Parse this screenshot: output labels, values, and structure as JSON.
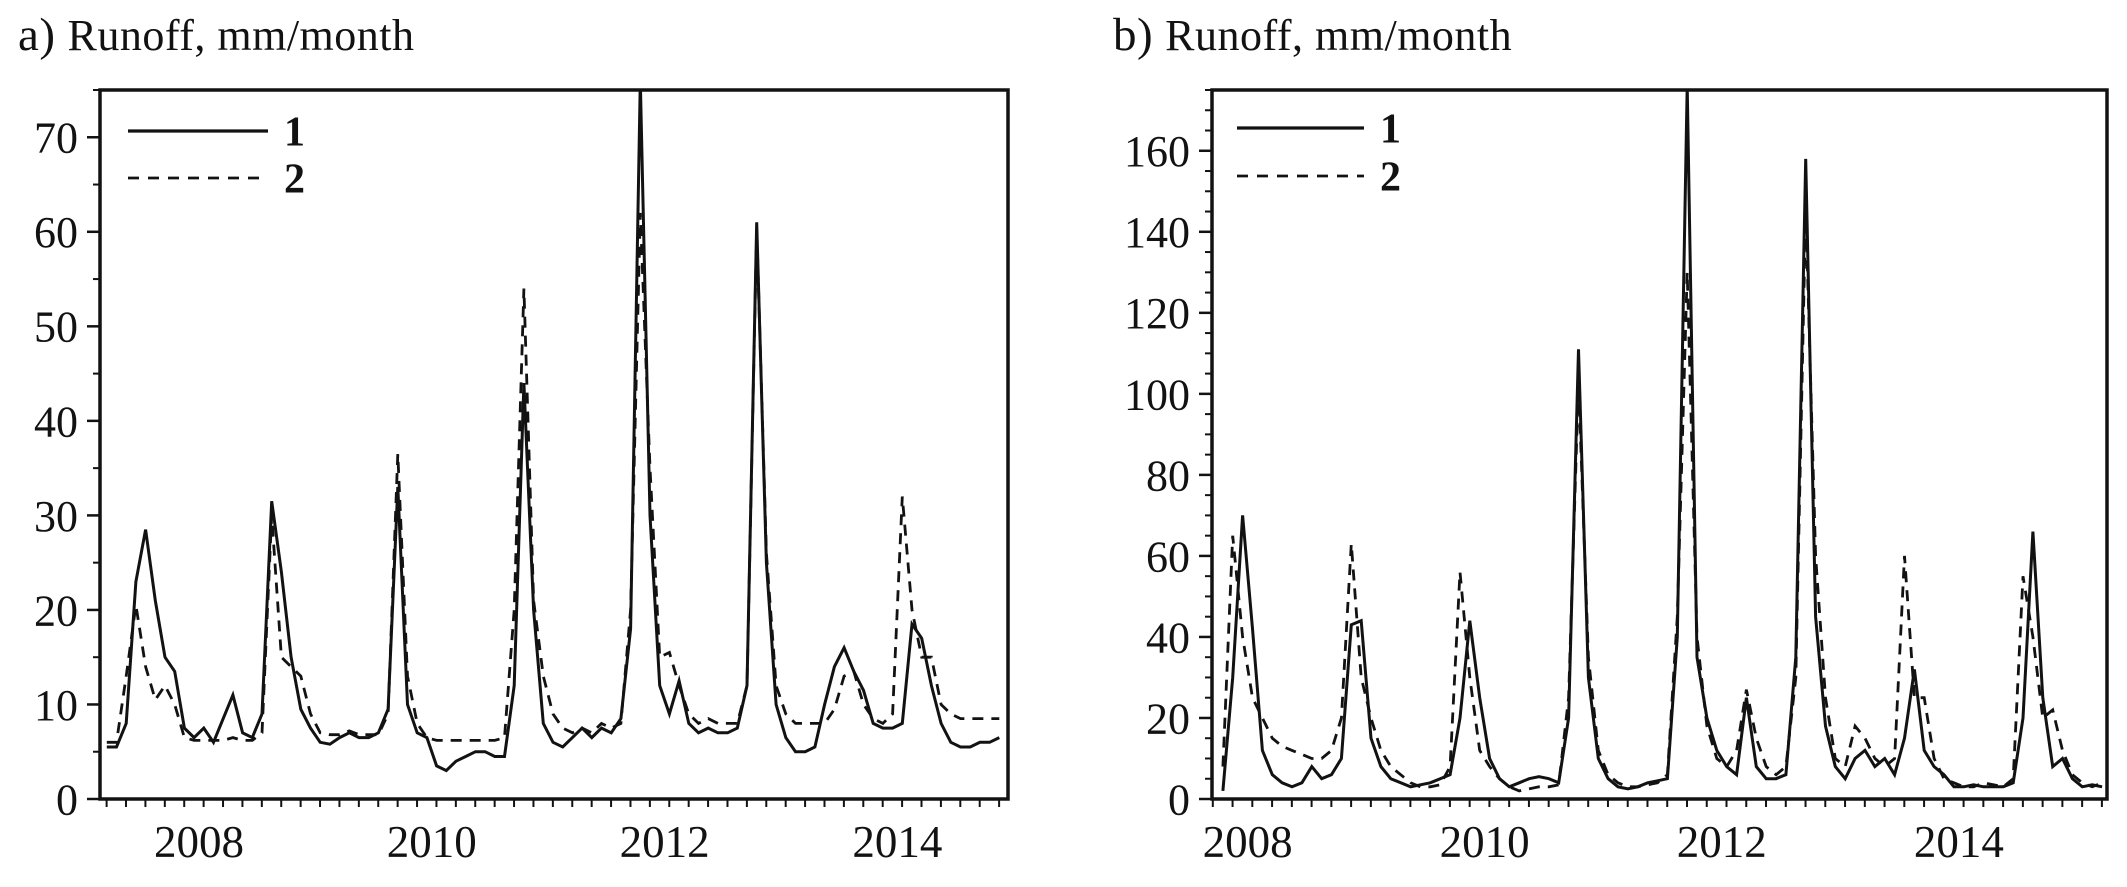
{
  "chart_data": [
    {
      "type": "line",
      "panel_id": "a",
      "panel_label": "a)",
      "title": "Runoff, mm/month",
      "ylabel": "Runoff, mm/month",
      "xlabel": "",
      "grid": false,
      "legend_position": "top-left-inside",
      "legend": [
        {
          "label": "1",
          "style": "solid"
        },
        {
          "label": "2",
          "style": "dashed"
        }
      ],
      "x_start": 2007.2083,
      "x_step_years": 0.0833333,
      "xlim": [
        2007.15,
        2014.95
      ],
      "ylim": [
        0,
        75
      ],
      "x_ticks": [
        2008,
        2010,
        2012,
        2014
      ],
      "y_ticks": [
        0,
        10,
        20,
        30,
        40,
        50,
        60,
        70
      ],
      "y_minor_step": 5,
      "x_minor_step": 0.16667,
      "line_color": "#121212",
      "series": [
        {
          "name": "1",
          "style": "solid",
          "values": [
            5.5,
            5.5,
            8,
            23,
            28.5,
            21,
            15,
            13.5,
            7.5,
            6.5,
            7.5,
            6,
            8.5,
            11,
            7,
            6.5,
            9,
            31.5,
            24,
            15,
            9.5,
            7.5,
            6,
            5.8,
            6.5,
            7,
            6.5,
            6.5,
            7,
            9.5,
            33,
            10,
            7,
            6.5,
            3.5,
            3,
            4,
            4.5,
            5,
            5,
            4.5,
            4.5,
            12,
            44,
            20,
            8,
            6,
            5.5,
            6.5,
            7.5,
            6.5,
            7.5,
            7,
            8.5,
            18,
            76,
            30,
            12,
            9,
            12.5,
            8,
            7,
            7.5,
            7,
            7,
            7.5,
            12,
            61,
            25,
            10,
            6.5,
            5,
            5,
            5.5,
            10,
            14,
            16,
            13.5,
            11.5,
            8,
            7.5,
            7.5,
            8,
            18.5,
            17,
            12,
            8,
            6,
            5.5,
            5.5,
            6,
            6,
            6.5
          ]
        },
        {
          "name": "2",
          "style": "dashed",
          "values": [
            6,
            6,
            13,
            20.5,
            14,
            10.5,
            12,
            10,
            6.5,
            6.2,
            6.2,
            6.2,
            6.2,
            6.5,
            6.2,
            6.2,
            7,
            30,
            15,
            14,
            13,
            9,
            7,
            6.8,
            6.8,
            7.2,
            6.8,
            6.8,
            6.8,
            9,
            36.5,
            13,
            8,
            6.5,
            6.2,
            6.2,
            6.2,
            6.2,
            6.2,
            6.2,
            6.2,
            6.5,
            20,
            54,
            21,
            13,
            9,
            7.5,
            7,
            7.5,
            7,
            8,
            7.5,
            8,
            20,
            62,
            35,
            15,
            15.5,
            12,
            9,
            8,
            8.5,
            8,
            8,
            8,
            12,
            60.5,
            26,
            12,
            9,
            8,
            8,
            8,
            8,
            9.5,
            13,
            13.5,
            10,
            8.5,
            8,
            9,
            32,
            20,
            15,
            15,
            10,
            9,
            8.5,
            8.5,
            8.5,
            8.5,
            8.5
          ]
        }
      ]
    },
    {
      "type": "line",
      "panel_id": "b",
      "panel_label": "b)",
      "title": "Runoff, mm/month",
      "ylabel": "Runoff, mm/month",
      "xlabel": "",
      "grid": false,
      "legend_position": "top-left-inside",
      "legend": [
        {
          "label": "1",
          "style": "solid"
        },
        {
          "label": "2",
          "style": "dashed"
        }
      ],
      "x_start": 2007.7917,
      "x_step_years": 0.0833333,
      "xlim": [
        2007.7,
        2015.25
      ],
      "ylim": [
        0,
        175
      ],
      "x_ticks": [
        2008,
        2010,
        2012,
        2014
      ],
      "y_ticks": [
        0,
        20,
        40,
        60,
        80,
        100,
        120,
        140,
        160
      ],
      "y_minor_step": 5,
      "x_minor_step": 0.16667,
      "line_color": "#121212",
      "series": [
        {
          "name": "1",
          "style": "solid",
          "values": [
            2,
            30,
            70,
            42,
            12,
            6,
            4,
            3,
            4,
            8,
            5,
            6,
            10,
            43,
            44,
            15,
            8,
            5,
            4,
            3,
            3.5,
            4,
            5,
            6,
            20,
            44,
            25,
            10,
            5,
            3,
            4,
            5,
            5.5,
            5,
            4,
            20,
            111,
            30,
            10,
            5,
            3,
            2.5,
            3,
            4,
            4.5,
            5,
            40,
            176,
            35,
            20,
            12,
            8,
            6,
            25,
            8,
            5,
            5,
            6,
            35,
            158,
            45,
            18,
            8,
            5,
            10,
            12,
            8,
            10,
            6,
            15,
            32,
            12,
            8,
            6,
            3,
            3,
            3.5,
            3,
            3,
            3,
            4,
            20,
            66,
            25,
            8,
            10,
            5,
            3,
            3.5,
            3
          ]
        },
        {
          "name": "2",
          "style": "dashed",
          "values": [
            8,
            65,
            40,
            25,
            20,
            15,
            13,
            12,
            11,
            10,
            10,
            12,
            20,
            63,
            30,
            20,
            12,
            8,
            6,
            4,
            3,
            3,
            3.5,
            8,
            56,
            30,
            12,
            8,
            5,
            3,
            2,
            2.5,
            3,
            3,
            3.5,
            25,
            103,
            35,
            12,
            6,
            4,
            3,
            3,
            3.5,
            4,
            6,
            45,
            130,
            40,
            18,
            10,
            8,
            12,
            27,
            15,
            8,
            6,
            8,
            30,
            146,
            60,
            25,
            10,
            8,
            18,
            15,
            10,
            8,
            10,
            60,
            25,
            25,
            10,
            5,
            4,
            3,
            3,
            4,
            3.5,
            3,
            5,
            55,
            40,
            20,
            22,
            12,
            6,
            4,
            3,
            4
          ]
        }
      ]
    }
  ]
}
